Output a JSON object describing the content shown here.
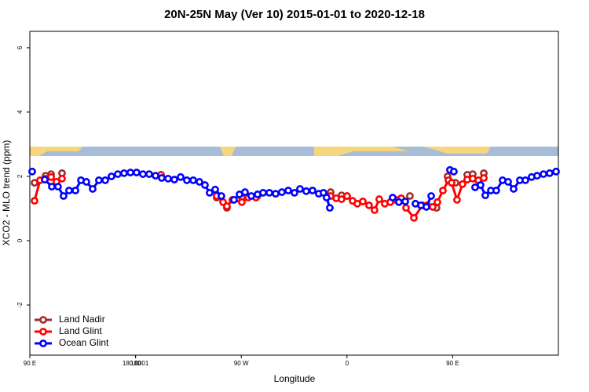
{
  "chart_data": {
    "type": "line",
    "title": "20N-25N May (Ver 10)   2015-01-01 to 2020-12-18",
    "x_label": "Longitude",
    "y_label": "XCO2 - MLO trend (ppm)",
    "xlim": [
      90,
      540
    ],
    "ylim": [
      -3.56,
      6.51
    ],
    "xticks": [
      {
        "value": 90,
        "label": "90 E"
      },
      180,
      {
        "value": 270,
        "label": "90 W"
      },
      {
        "value": 360,
        "label": "0"
      },
      {
        "value": 450,
        "label": "90 E"
      },
      180.0001
    ],
    "yticks": [
      -2,
      0,
      2,
      4,
      6
    ],
    "legend": "bottom-left",
    "series": [
      {
        "name": "Land Nadir",
        "color": "#a52a2a",
        "x": [
          94,
          103.4,
          108.1,
          117.4,
          249.1,
          257.8,
          270.5,
          283.9,
          346.1,
          355.4,
          360.1,
          413.6,
          436.3,
          445.7,
          452.4,
          462.4,
          467.1,
          476.5
        ],
        "values": [
          1.8,
          2.02,
          2.07,
          2.1,
          1.34,
          1.02,
          1.34,
          1.39,
          1.51,
          1.41,
          1.39,
          1.39,
          1.02,
          2.0,
          1.8,
          2.05,
          2.07,
          2.1
        ]
      },
      {
        "name": "Land Glint",
        "color": "#ff0000",
        "x": [
          94,
          98.7,
          103.4,
          108.1,
          112.7,
          117.4,
          201.7,
          249.1,
          254.5,
          257.8,
          262.5,
          270.5,
          275.9,
          282.6,
          346.1,
          350.8,
          355.4,
          360.1,
          364.8,
          368.8,
          373.5,
          378.8,
          383.5,
          387.5,
          392.2,
          396.9,
          401.6,
          406.2,
          410.3,
          417,
          424.3,
          428.3,
          433,
          437,
          441.7,
          446.4,
          449.1,
          453.7,
          458.4,
          462.4,
          467.1,
          471.8,
          476.5
        ],
        "values": [
          1.24,
          1.88,
          1.93,
          1.98,
          1.83,
          1.93,
          2.05,
          1.39,
          1.2,
          1.07,
          1.27,
          1.2,
          1.34,
          1.34,
          1.39,
          1.32,
          1.29,
          1.39,
          1.24,
          1.15,
          1.22,
          1.1,
          0.95,
          1.29,
          1.15,
          1.2,
          1.27,
          1.32,
          1.02,
          0.71,
          1.1,
          1.1,
          1.05,
          1.2,
          1.56,
          1.88,
          1.8,
          1.27,
          1.76,
          1.9,
          1.93,
          1.88,
          1.95
        ]
      },
      {
        "name": "Ocean Glint",
        "color": "#0000ff",
        "x": [
          92,
          102.7,
          108.7,
          114,
          118.7,
          123.4,
          128.8,
          133.5,
          138.1,
          143.5,
          148.8,
          154.2,
          159.5,
          164.9,
          170.2,
          175.6,
          180.9,
          186.3,
          191.6,
          197,
          202.3,
          207.7,
          213,
          218.4,
          223.7,
          229.1,
          234.4,
          239.1,
          243.1,
          247.8,
          253.1,
          263.8,
          268.5,
          273.2,
          278.5,
          283.9,
          288.6,
          293.9,
          299.3,
          304.6,
          310,
          315.3,
          320,
          325.3,
          330.7,
          336,
          340,
          342.7,
          345.4,
          398.9,
          404.2,
          409.6,
          418.3,
          423,
          427.6,
          431.7,
          447.7,
          451,
          469.1,
          473.8,
          477.8,
          482.5,
          487.1,
          492.5,
          497.2,
          501.9,
          507.2,
          511.9,
          517.2,
          521.9,
          527.3,
          532.6,
          538
        ],
        "values": [
          2.15,
          1.9,
          1.68,
          1.68,
          1.39,
          1.56,
          1.56,
          1.88,
          1.83,
          1.61,
          1.88,
          1.88,
          2.0,
          2.07,
          2.1,
          2.12,
          2.12,
          2.07,
          2.07,
          2.02,
          1.95,
          1.93,
          1.9,
          1.98,
          1.88,
          1.88,
          1.83,
          1.73,
          1.49,
          1.59,
          1.39,
          1.27,
          1.44,
          1.51,
          1.39,
          1.44,
          1.49,
          1.49,
          1.46,
          1.51,
          1.56,
          1.49,
          1.61,
          1.54,
          1.56,
          1.46,
          1.49,
          1.34,
          1.02,
          1.34,
          1.2,
          1.22,
          1.15,
          1.1,
          1.05,
          1.39,
          2.2,
          2.15,
          1.66,
          1.73,
          1.41,
          1.56,
          1.56,
          1.88,
          1.83,
          1.61,
          1.88,
          1.88,
          1.98,
          2.02,
          2.07,
          2.1,
          2.15
        ]
      }
    ]
  }
}
